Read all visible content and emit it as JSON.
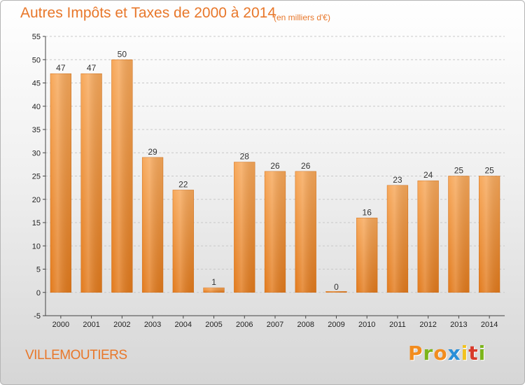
{
  "chart_data": {
    "type": "bar",
    "title": "Autres Impôts et Taxes de 2000 à 2014",
    "subtitle": "(en milliers d'€)",
    "categories": [
      "2000",
      "2001",
      "2002",
      "2003",
      "2004",
      "2005",
      "2006",
      "2007",
      "2008",
      "2009",
      "2010",
      "2011",
      "2012",
      "2013",
      "2014"
    ],
    "values": [
      47,
      47,
      50,
      29,
      22,
      1,
      28,
      26,
      26,
      0,
      16,
      23,
      24,
      25,
      25
    ],
    "ylim": [
      -5,
      55
    ],
    "yticks": [
      -5,
      0,
      5,
      10,
      15,
      20,
      25,
      30,
      35,
      40,
      45,
      50,
      55
    ],
    "grid": "horizontal dashed",
    "bar_color": "#f0892c",
    "bar_color_top": "#f7a85a",
    "bar_color_bottom": "#e27a1c"
  },
  "town_name": "VILLEMOUTIERS",
  "logo": {
    "letters": [
      "P",
      "r",
      "o",
      "x",
      "i",
      "t",
      "i"
    ],
    "colors": [
      "#f28c1e",
      "#7cb51b",
      "#f28c1e",
      "#2a8fd8",
      "#f2c21e",
      "#d83a2a",
      "#7cb51b"
    ]
  },
  "colors": {
    "text_accent": "#e8772a",
    "axis": "#444444",
    "grid": "#c8c8c8"
  }
}
